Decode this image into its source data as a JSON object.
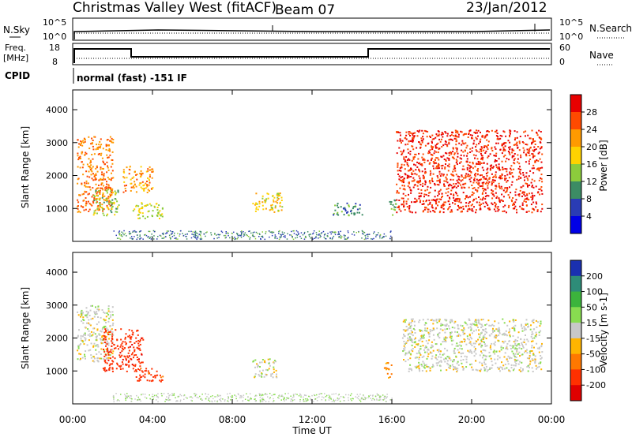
{
  "header": {
    "title": "Christmas Valley West (fitACF)",
    "beam": "Beam 07",
    "date": "23/Jan/2012"
  },
  "panels": {
    "nsky": {
      "label": "N.Sky",
      "tick_top": "10^5",
      "tick_bottom": "10^0",
      "right_label": "N.Search",
      "right_tick_top": "10^5",
      "right_tick_bottom": "10^0"
    },
    "freq": {
      "label_line1": "Freq.",
      "label_line2": "[MHz]",
      "tick_top": "18",
      "tick_bottom": "8",
      "right_label": "Nave",
      "right_tick_top": "60",
      "right_tick_bottom": "0"
    },
    "cpid": {
      "label": "CPID",
      "value": "normal (fast) -151 IF"
    }
  },
  "chart_data": [
    {
      "type": "heatmap",
      "name": "power",
      "ylabel": "Slant Range [km]",
      "yticks": [
        1000,
        2000,
        3000,
        4000
      ],
      "ylim": [
        0,
        4600
      ],
      "xlabel": "",
      "colorbar": {
        "label": "Power [dB]",
        "ticks": [
          "28",
          "24",
          "20",
          "16",
          "12",
          "8",
          "4"
        ],
        "colors": [
          "#e80000",
          "#ff4a00",
          "#ff9a00",
          "#ffd200",
          "#8ccc3c",
          "#3c8c64",
          "#2a3cb4",
          "#0000e6"
        ]
      },
      "regions": [
        {
          "t0": 0.2,
          "t1": 2.0,
          "r0": 900,
          "r1": 3200,
          "level": 24
        },
        {
          "t0": 1.0,
          "t1": 2.3,
          "r0": 800,
          "r1": 1600,
          "level": 14
        },
        {
          "t0": 2.5,
          "t1": 4.0,
          "r0": 1500,
          "r1": 2300,
          "level": 22
        },
        {
          "t0": 3.0,
          "t1": 4.5,
          "r0": 700,
          "r1": 1200,
          "level": 16
        },
        {
          "t0": 9.0,
          "t1": 10.5,
          "r0": 900,
          "r1": 1500,
          "level": 18
        },
        {
          "t0": 13.0,
          "t1": 14.5,
          "r0": 800,
          "r1": 1200,
          "level": 10
        },
        {
          "t0": 15.8,
          "t1": 16.2,
          "r0": 800,
          "r1": 1300,
          "level": 12
        },
        {
          "t0": 16.2,
          "t1": 23.5,
          "r0": 900,
          "r1": 3400,
          "level": 28
        }
      ]
    },
    {
      "type": "heatmap",
      "name": "velocity",
      "ylabel": "Slant Range [km]",
      "yticks": [
        1000,
        2000,
        3000,
        4000
      ],
      "ylim": [
        0,
        4600
      ],
      "xlabel": "Time UT",
      "xticks": [
        "00:00",
        "04:00",
        "08:00",
        "12:00",
        "16:00",
        "20:00",
        "00:00"
      ],
      "xlim": [
        0,
        24
      ],
      "colorbar": {
        "label": "Velocity [m s-1]",
        "ticks": [
          "200",
          "100",
          "50",
          "15",
          "-15",
          "-50",
          "-100",
          "-200"
        ],
        "colors": [
          "#1a30b0",
          "#2e8c78",
          "#3cb43c",
          "#88dc50",
          "#c8c8c8",
          "#ffb400",
          "#ff7800",
          "#ff3000",
          "#e00000"
        ]
      },
      "regions": [
        {
          "t0": 0.2,
          "t1": 2.0,
          "r0": 1300,
          "r1": 3000,
          "level": 0
        },
        {
          "t0": 1.5,
          "t1": 3.5,
          "r0": 1000,
          "r1": 2300,
          "level": -180
        },
        {
          "t0": 3.0,
          "t1": 4.5,
          "r0": 700,
          "r1": 1100,
          "level": -120
        },
        {
          "t0": 9.0,
          "t1": 10.2,
          "r0": 800,
          "r1": 1400,
          "level": 0
        },
        {
          "t0": 15.6,
          "t1": 16.0,
          "r0": 800,
          "r1": 1300,
          "level": -60
        },
        {
          "t0": 16.5,
          "t1": 23.5,
          "r0": 1000,
          "r1": 2600,
          "level": 0
        }
      ]
    }
  ]
}
